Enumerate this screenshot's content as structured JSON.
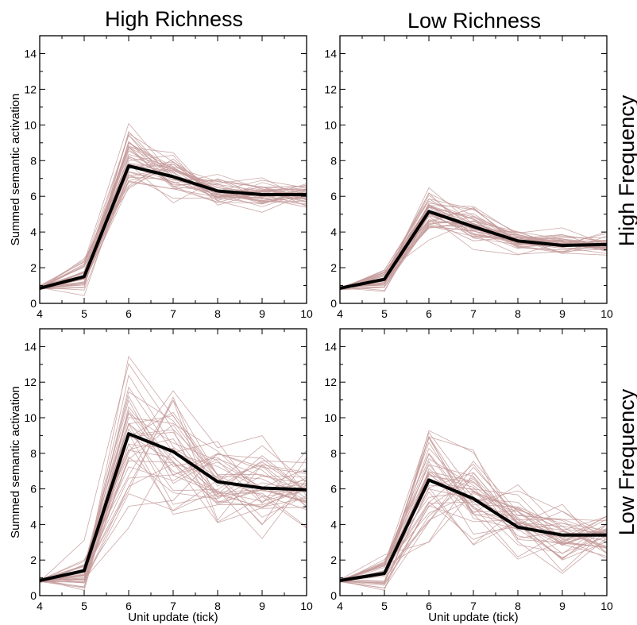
{
  "figure": {
    "col_titles": [
      "High Richness",
      "Low Richness"
    ],
    "row_titles": [
      "High Frequency",
      "Low Frequency"
    ],
    "xlabel": "Unit update (tick)",
    "ylabel": "Summed semantic activation",
    "colors": {
      "background": "#ffffff",
      "individual_line": "#c49a9a",
      "mean_line": "#000000",
      "axis": "#000000"
    }
  },
  "chart_data": [
    {
      "type": "line",
      "title": "High Richness",
      "row_label": "High Frequency",
      "xlabel": "",
      "ylabel": "Summed semantic activation",
      "x": [
        4,
        5,
        6,
        7,
        8,
        9,
        10
      ],
      "xlim": [
        4,
        10
      ],
      "ylim": [
        0,
        15
      ],
      "xticks": [
        4,
        5,
        6,
        7,
        8,
        9,
        10
      ],
      "yticks": [
        0,
        2,
        4,
        6,
        8,
        10,
        12,
        14
      ],
      "grid": false,
      "mean": [
        0.85,
        1.5,
        7.7,
        7.1,
        6.3,
        6.1,
        6.1
      ],
      "spread": [
        0.05,
        0.45,
        0.85,
        0.55,
        0.4,
        0.35,
        0.32
      ],
      "n_items": 40,
      "seed": 11
    },
    {
      "type": "line",
      "title": "Low Richness",
      "row_label": "High Frequency",
      "xlabel": "",
      "ylabel": "",
      "x": [
        4,
        5,
        6,
        7,
        8,
        9,
        10
      ],
      "xlim": [
        4,
        10
      ],
      "ylim": [
        0,
        15
      ],
      "xticks": [
        4,
        5,
        6,
        7,
        8,
        9,
        10
      ],
      "yticks": [
        0,
        2,
        4,
        6,
        8,
        10,
        12,
        14
      ],
      "grid": false,
      "mean": [
        0.85,
        1.35,
        5.15,
        4.3,
        3.5,
        3.25,
        3.3
      ],
      "spread": [
        0.05,
        0.35,
        0.65,
        0.5,
        0.35,
        0.3,
        0.28
      ],
      "n_items": 40,
      "seed": 23
    },
    {
      "type": "line",
      "title": "",
      "row_label": "Low Frequency",
      "xlabel": "Unit update (tick)",
      "ylabel": "Summed semantic activation",
      "x": [
        4,
        5,
        6,
        7,
        8,
        9,
        10
      ],
      "xlim": [
        4,
        10
      ],
      "ylim": [
        0,
        15
      ],
      "xticks": [
        4,
        5,
        6,
        7,
        8,
        9,
        10
      ],
      "yticks": [
        0,
        2,
        4,
        6,
        8,
        10,
        12,
        14
      ],
      "grid": false,
      "mean": [
        0.85,
        1.4,
        9.1,
        8.1,
        6.4,
        6.05,
        5.95
      ],
      "spread": [
        0.05,
        0.55,
        2.1,
        1.7,
        1.25,
        1.05,
        0.95
      ],
      "n_items": 40,
      "seed": 37
    },
    {
      "type": "line",
      "title": "",
      "row_label": "Low Frequency",
      "xlabel": "Unit update (tick)",
      "ylabel": "",
      "x": [
        4,
        5,
        6,
        7,
        8,
        9,
        10
      ],
      "xlim": [
        4,
        10
      ],
      "ylim": [
        0,
        15
      ],
      "xticks": [
        4,
        5,
        6,
        7,
        8,
        9,
        10
      ],
      "yticks": [
        0,
        2,
        4,
        6,
        8,
        10,
        12,
        14
      ],
      "grid": false,
      "mean": [
        0.85,
        1.25,
        6.5,
        5.45,
        3.85,
        3.4,
        3.4
      ],
      "spread": [
        0.05,
        0.45,
        1.6,
        1.3,
        0.9,
        0.75,
        0.7
      ],
      "n_items": 40,
      "seed": 53
    }
  ]
}
